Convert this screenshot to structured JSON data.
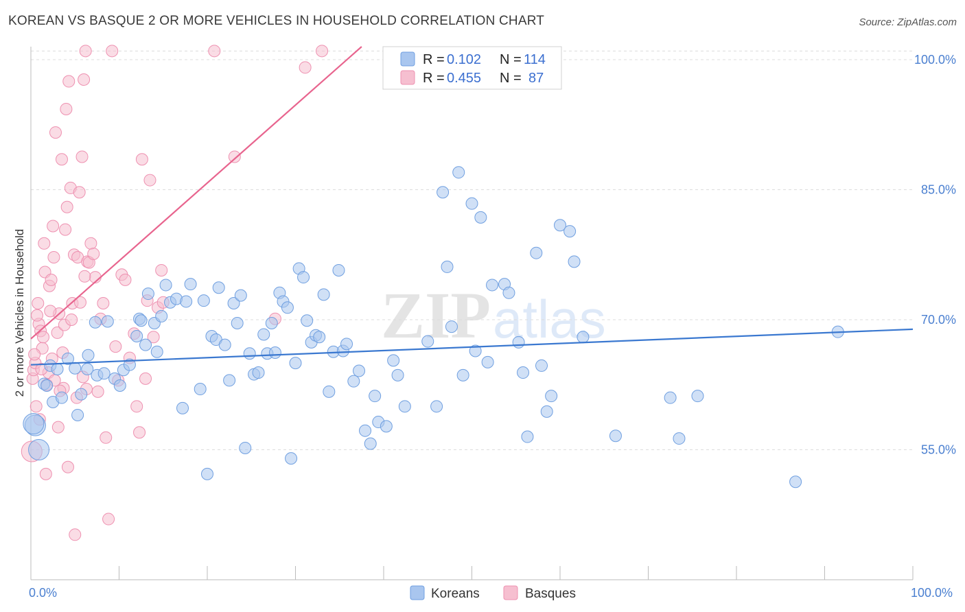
{
  "title": "KOREAN VS BASQUE 2 OR MORE VEHICLES IN HOUSEHOLD CORRELATION CHART",
  "source": "Source: ZipAtlas.com",
  "watermark": {
    "zip": "ZIP",
    "atlas": "atlas"
  },
  "colors": {
    "korean_fill": "#a9c6ef",
    "korean_stroke": "#6f9fe0",
    "korean_line": "#3a78d0",
    "basque_fill": "#f6bfd0",
    "basque_stroke": "#ee90b0",
    "basque_line": "#e8648e",
    "grid": "#dcdcdc",
    "axis_label": "#4a7fd0"
  },
  "legend": {
    "korean": {
      "r_label": "R =",
      "r_value": "0.102",
      "n_label": "N =",
      "n_value": "114"
    },
    "basque": {
      "r_label": "R =",
      "r_value": "0.455",
      "n_label": "N =",
      "n_value": "87"
    }
  },
  "bottom_legend": {
    "korean": "Koreans",
    "basque": "Basques"
  },
  "chart_data": {
    "type": "scatter",
    "title": "KOREAN VS BASQUE 2 OR MORE VEHICLES IN HOUSEHOLD CORRELATION CHART",
    "xlabel": "",
    "ylabel": "2 or more Vehicles in Household",
    "xlim": [
      0,
      100
    ],
    "ylim": [
      40,
      101.5
    ],
    "x_tick_labels": [
      "0.0%",
      "100.0%"
    ],
    "y_ticks": [
      55,
      70,
      85,
      100
    ],
    "y_tick_labels": [
      "55.0%",
      "70.0%",
      "85.0%",
      "100.0%"
    ],
    "series": [
      {
        "name": "Koreans",
        "r": 0.102,
        "n": 114,
        "trend": {
          "x": [
            0,
            100
          ],
          "y": [
            64.8,
            68.9
          ]
        },
        "points": [
          [
            0.5,
            57.8
          ],
          [
            0.9,
            55.0
          ],
          [
            1.5,
            62.6
          ],
          [
            1.8,
            62.4
          ],
          [
            2.2,
            64.7
          ],
          [
            2.5,
            60.5
          ],
          [
            3,
            64.3
          ],
          [
            3.5,
            61.0
          ],
          [
            4.2,
            65.5
          ],
          [
            5,
            64.4
          ],
          [
            5.3,
            59.0
          ],
          [
            5.7,
            61.4
          ],
          [
            6.4,
            64.3
          ],
          [
            6.5,
            65.9
          ],
          [
            7.3,
            69.7
          ],
          [
            7.5,
            63.6
          ],
          [
            8.3,
            63.8
          ],
          [
            8.7,
            69.8
          ],
          [
            9.5,
            63.2
          ],
          [
            10.1,
            62.4
          ],
          [
            10.5,
            64.2
          ],
          [
            11.2,
            64.8
          ],
          [
            12.0,
            68.1
          ],
          [
            12.3,
            70.1
          ],
          [
            12.5,
            69.9
          ],
          [
            13.0,
            67.1
          ],
          [
            13.3,
            73.0
          ],
          [
            14.0,
            69.6
          ],
          [
            14.3,
            66.3
          ],
          [
            14.8,
            70.4
          ],
          [
            15.3,
            74.0
          ],
          [
            15.8,
            72.0
          ],
          [
            16.5,
            72.4
          ],
          [
            17.2,
            59.8
          ],
          [
            17.6,
            72.1
          ],
          [
            18.1,
            74.1
          ],
          [
            19.2,
            62.0
          ],
          [
            19.6,
            72.2
          ],
          [
            20.0,
            52.2
          ],
          [
            20.5,
            68.1
          ],
          [
            21.0,
            67.7
          ],
          [
            21.3,
            73.7
          ],
          [
            22.0,
            67.1
          ],
          [
            22.5,
            63.0
          ],
          [
            23.0,
            71.9
          ],
          [
            23.4,
            69.6
          ],
          [
            23.8,
            72.8
          ],
          [
            24.3,
            55.2
          ],
          [
            24.8,
            66.1
          ],
          [
            25.3,
            63.7
          ],
          [
            25.8,
            63.9
          ],
          [
            26.4,
            68.3
          ],
          [
            26.8,
            66.1
          ],
          [
            27.3,
            69.6
          ],
          [
            27.7,
            66.2
          ],
          [
            28.2,
            73.1
          ],
          [
            28.6,
            72.1
          ],
          [
            29.1,
            71.4
          ],
          [
            29.5,
            54.0
          ],
          [
            30.0,
            65.0
          ],
          [
            30.4,
            75.9
          ],
          [
            30.9,
            74.9
          ],
          [
            31.3,
            69.9
          ],
          [
            31.8,
            67.4
          ],
          [
            32.3,
            68.2
          ],
          [
            32.7,
            68.0
          ],
          [
            33.2,
            72.9
          ],
          [
            33.8,
            61.7
          ],
          [
            34.3,
            66.3
          ],
          [
            34.9,
            75.7
          ],
          [
            35.4,
            66.4
          ],
          [
            35.8,
            67.2
          ],
          [
            36.6,
            62.9
          ],
          [
            37.2,
            64.1
          ],
          [
            37.9,
            57.2
          ],
          [
            38.5,
            55.7
          ],
          [
            39.0,
            61.2
          ],
          [
            39.4,
            58.2
          ],
          [
            40.3,
            57.7
          ],
          [
            41.1,
            65.3
          ],
          [
            41.6,
            63.6
          ],
          [
            42.4,
            60.0
          ],
          [
            45.0,
            67.5
          ],
          [
            46.0,
            60.0
          ],
          [
            46.7,
            84.7
          ],
          [
            47.2,
            76.1
          ],
          [
            47.7,
            69.2
          ],
          [
            48.5,
            87.0
          ],
          [
            49.0,
            63.6
          ],
          [
            50.0,
            83.4
          ],
          [
            50.4,
            66.4
          ],
          [
            51.0,
            81.8
          ],
          [
            51.8,
            65.1
          ],
          [
            52.3,
            74.0
          ],
          [
            53.7,
            74.1
          ],
          [
            54.2,
            73.1
          ],
          [
            55.3,
            67.4
          ],
          [
            55.8,
            63.9
          ],
          [
            56.3,
            56.5
          ],
          [
            57.3,
            77.7
          ],
          [
            57.9,
            64.7
          ],
          [
            58.5,
            59.4
          ],
          [
            59.0,
            61.2
          ],
          [
            60.0,
            80.9
          ],
          [
            61.1,
            80.2
          ],
          [
            61.6,
            76.7
          ],
          [
            62.6,
            68.0
          ],
          [
            66.3,
            56.6
          ],
          [
            72.5,
            61.0
          ],
          [
            73.5,
            56.3
          ],
          [
            75.6,
            61.2
          ],
          [
            86.7,
            51.3
          ],
          [
            91.5,
            68.6
          ],
          [
            0.3,
            58.0
          ]
        ]
      },
      {
        "name": "Basques",
        "r": 0.455,
        "n": 87,
        "trend": {
          "x": [
            0,
            37.5
          ],
          "y": [
            67.8,
            101.5
          ]
        },
        "points": [
          [
            0.2,
            63.2
          ],
          [
            0.3,
            64.2
          ],
          [
            0.5,
            65.0
          ],
          [
            0.6,
            60.0
          ],
          [
            0.8,
            71.9
          ],
          [
            0.9,
            69.5
          ],
          [
            1.1,
            68.7
          ],
          [
            1.3,
            66.7
          ],
          [
            1.5,
            78.8
          ],
          [
            1.6,
            75.5
          ],
          [
            1.8,
            62.5
          ],
          [
            2.0,
            63.9
          ],
          [
            2.1,
            73.9
          ],
          [
            2.3,
            74.6
          ],
          [
            2.5,
            80.8
          ],
          [
            2.6,
            77.2
          ],
          [
            2.8,
            91.6
          ],
          [
            3.0,
            68.5
          ],
          [
            3.2,
            70.7
          ],
          [
            3.5,
            88.5
          ],
          [
            3.7,
            62.1
          ],
          [
            3.9,
            80.4
          ],
          [
            4.0,
            94.3
          ],
          [
            4.1,
            83.0
          ],
          [
            4.3,
            97.5
          ],
          [
            4.5,
            85.2
          ],
          [
            4.7,
            71.9
          ],
          [
            4.9,
            77.5
          ],
          [
            5.3,
            77.2
          ],
          [
            5.5,
            84.7
          ],
          [
            5.8,
            88.8
          ],
          [
            6.0,
            97.7
          ],
          [
            6.2,
            101.0
          ],
          [
            6.4,
            76.7
          ],
          [
            6.6,
            76.6
          ],
          [
            6.8,
            78.8
          ],
          [
            7.1,
            77.6
          ],
          [
            7.3,
            74.9
          ],
          [
            7.6,
            61.7
          ],
          [
            7.9,
            70.1
          ],
          [
            8.2,
            71.9
          ],
          [
            8.5,
            56.4
          ],
          [
            8.8,
            47.0
          ],
          [
            9.2,
            101.0
          ],
          [
            9.6,
            66.9
          ],
          [
            9.9,
            63.0
          ],
          [
            10.3,
            75.2
          ],
          [
            10.7,
            74.6
          ],
          [
            11.2,
            65.6
          ],
          [
            11.7,
            68.4
          ],
          [
            12.0,
            60.0
          ],
          [
            12.3,
            57.0
          ],
          [
            12.6,
            88.5
          ],
          [
            13.0,
            63.2
          ],
          [
            13.2,
            72.2
          ],
          [
            13.5,
            86.1
          ],
          [
            13.9,
            68.0
          ],
          [
            14.4,
            71.4
          ],
          [
            14.8,
            75.7
          ],
          [
            15.0,
            72.0
          ],
          [
            20.8,
            101.0
          ],
          [
            23.1,
            88.8
          ],
          [
            27.7,
            70.1
          ],
          [
            31.1,
            99.1
          ],
          [
            33.0,
            101.0
          ],
          [
            0.4,
            66.0
          ],
          [
            0.7,
            70.5
          ],
          [
            1.0,
            58.5
          ],
          [
            1.2,
            64.3
          ],
          [
            1.4,
            68.0
          ],
          [
            1.7,
            52.2
          ],
          [
            2.2,
            71.0
          ],
          [
            2.4,
            65.5
          ],
          [
            2.7,
            63.0
          ],
          [
            3.1,
            57.6
          ],
          [
            3.3,
            61.8
          ],
          [
            3.6,
            66.2
          ],
          [
            3.8,
            69.4
          ],
          [
            4.2,
            53.0
          ],
          [
            4.6,
            70.0
          ],
          [
            5.0,
            45.2
          ],
          [
            5.2,
            61.0
          ],
          [
            5.6,
            72.0
          ],
          [
            5.9,
            63.4
          ],
          [
            6.1,
            75.0
          ],
          [
            6.3,
            62.0
          ],
          [
            0.1,
            54.8
          ]
        ]
      }
    ]
  }
}
